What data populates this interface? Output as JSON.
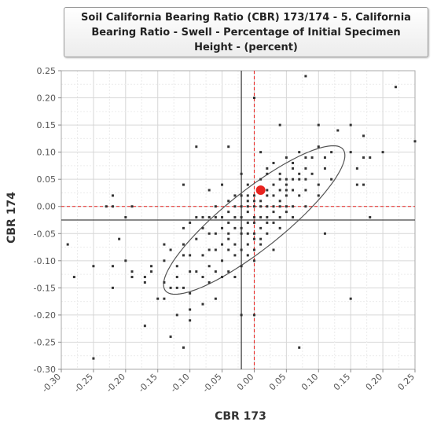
{
  "chart_data": {
    "type": "scatter",
    "title": "Soil California Bearing Ratio (CBR) 173/174 - 5. California Bearing Ratio - Swell - Percentage of Initial Specimen Height - (percent)",
    "xlabel": "CBR 173",
    "ylabel": "CBR 174",
    "xlim": [
      -0.3,
      0.25
    ],
    "ylim": [
      -0.3,
      0.25
    ],
    "xticks": [
      "-0.30",
      "-0.25",
      "-0.20",
      "-0.15",
      "-0.10",
      "-0.05",
      "0.00",
      "0.05",
      "0.10",
      "0.15",
      "0.20",
      "0.25"
    ],
    "yticks": [
      "0.25",
      "0.20",
      "0.15",
      "0.10",
      "0.05",
      "0.00",
      "-0.05",
      "-0.10",
      "-0.15",
      "-0.20",
      "-0.25",
      "-0.30"
    ],
    "grid": true,
    "colors": {
      "points": "#333333",
      "highlight": "#e8231f",
      "refline": "#e8231f",
      "meanline": "#444444",
      "ellipse": "#555555",
      "grid": "#dddddd"
    },
    "mean": {
      "x": -0.02,
      "y": -0.025
    },
    "highlight_point": {
      "x": 0.01,
      "y": 0.03
    },
    "ellipse": {
      "center": [
        0.0,
        -0.025
      ],
      "semi_major": 0.19,
      "semi_minor": 0.05,
      "angle_deg": 44
    },
    "points": [
      [
        -0.29,
        -0.07
      ],
      [
        -0.28,
        -0.13
      ],
      [
        -0.25,
        -0.28
      ],
      [
        -0.25,
        -0.11
      ],
      [
        -0.23,
        0.0
      ],
      [
        -0.22,
        0.0
      ],
      [
        -0.22,
        0.02
      ],
      [
        -0.22,
        -0.11
      ],
      [
        -0.22,
        -0.15
      ],
      [
        -0.21,
        -0.06
      ],
      [
        -0.2,
        -0.02
      ],
      [
        -0.2,
        -0.1
      ],
      [
        -0.19,
        0.0
      ],
      [
        -0.19,
        -0.12
      ],
      [
        -0.19,
        -0.13
      ],
      [
        -0.17,
        -0.22
      ],
      [
        -0.17,
        -0.13
      ],
      [
        -0.17,
        -0.14
      ],
      [
        -0.16,
        -0.11
      ],
      [
        -0.16,
        -0.12
      ],
      [
        -0.15,
        -0.17
      ],
      [
        -0.14,
        -0.07
      ],
      [
        -0.14,
        -0.1
      ],
      [
        -0.14,
        -0.14
      ],
      [
        -0.14,
        -0.17
      ],
      [
        -0.13,
        -0.24
      ],
      [
        -0.13,
        -0.08
      ],
      [
        -0.13,
        -0.15
      ],
      [
        -0.12,
        -0.11
      ],
      [
        -0.12,
        -0.13
      ],
      [
        -0.12,
        -0.15
      ],
      [
        -0.12,
        -0.2
      ],
      [
        -0.11,
        -0.26
      ],
      [
        -0.11,
        -0.07
      ],
      [
        -0.11,
        -0.09
      ],
      [
        -0.11,
        -0.15
      ],
      [
        -0.11,
        0.04
      ],
      [
        -0.11,
        -0.04
      ],
      [
        -0.1,
        -0.03
      ],
      [
        -0.1,
        -0.09
      ],
      [
        -0.1,
        -0.12
      ],
      [
        -0.1,
        -0.16
      ],
      [
        -0.1,
        -0.19
      ],
      [
        -0.1,
        -0.21
      ],
      [
        -0.09,
        -0.12
      ],
      [
        -0.09,
        -0.06
      ],
      [
        -0.09,
        -0.02
      ],
      [
        -0.09,
        0.11
      ],
      [
        -0.08,
        -0.09
      ],
      [
        -0.08,
        -0.13
      ],
      [
        -0.08,
        -0.18
      ],
      [
        -0.08,
        -0.04
      ],
      [
        -0.08,
        -0.02
      ],
      [
        -0.07,
        -0.05
      ],
      [
        -0.07,
        -0.08
      ],
      [
        -0.07,
        -0.11
      ],
      [
        -0.07,
        -0.14
      ],
      [
        -0.07,
        -0.02
      ],
      [
        -0.07,
        0.03
      ],
      [
        -0.06,
        0.0
      ],
      [
        -0.06,
        -0.02
      ],
      [
        -0.06,
        -0.05
      ],
      [
        -0.06,
        -0.08
      ],
      [
        -0.06,
        -0.12
      ],
      [
        -0.06,
        -0.17
      ],
      [
        -0.05,
        -0.02
      ],
      [
        -0.05,
        -0.04
      ],
      [
        -0.05,
        -0.07
      ],
      [
        -0.05,
        -0.1
      ],
      [
        -0.05,
        -0.13
      ],
      [
        -0.05,
        0.04
      ],
      [
        -0.04,
        -0.01
      ],
      [
        -0.04,
        -0.03
      ],
      [
        -0.04,
        -0.05
      ],
      [
        -0.04,
        -0.06
      ],
      [
        -0.04,
        -0.08
      ],
      [
        -0.04,
        -0.12
      ],
      [
        -0.04,
        0.01
      ],
      [
        -0.04,
        0.11
      ],
      [
        -0.03,
        0.0
      ],
      [
        -0.03,
        -0.02
      ],
      [
        -0.03,
        -0.04
      ],
      [
        -0.03,
        -0.07
      ],
      [
        -0.03,
        -0.09
      ],
      [
        -0.03,
        -0.13
      ],
      [
        -0.03,
        0.02
      ],
      [
        -0.02,
        0.0
      ],
      [
        -0.02,
        -0.02
      ],
      [
        -0.02,
        -0.04
      ],
      [
        -0.02,
        -0.05
      ],
      [
        -0.02,
        -0.08
      ],
      [
        -0.02,
        -0.11
      ],
      [
        -0.02,
        -0.2
      ],
      [
        -0.02,
        0.02
      ],
      [
        -0.02,
        0.06
      ],
      [
        -0.01,
        0.0
      ],
      [
        -0.01,
        -0.01
      ],
      [
        -0.01,
        -0.03
      ],
      [
        -0.01,
        -0.05
      ],
      [
        -0.01,
        -0.07
      ],
      [
        -0.01,
        -0.09
      ],
      [
        -0.01,
        0.01
      ],
      [
        -0.01,
        0.02
      ],
      [
        -0.01,
        0.04
      ],
      [
        0.0,
        0.0
      ],
      [
        0.0,
        -0.02
      ],
      [
        0.0,
        -0.03
      ],
      [
        0.0,
        -0.05
      ],
      [
        0.0,
        -0.06
      ],
      [
        0.0,
        -0.08
      ],
      [
        0.0,
        -0.1
      ],
      [
        0.0,
        -0.2
      ],
      [
        0.0,
        0.01
      ],
      [
        0.0,
        0.02
      ],
      [
        0.0,
        0.2
      ],
      [
        0.01,
        0.0
      ],
      [
        0.01,
        -0.02
      ],
      [
        0.01,
        -0.04
      ],
      [
        0.01,
        -0.06
      ],
      [
        0.01,
        -0.07
      ],
      [
        0.01,
        0.01
      ],
      [
        0.01,
        0.05
      ],
      [
        0.01,
        0.1
      ],
      [
        0.02,
        0.0
      ],
      [
        0.02,
        -0.02
      ],
      [
        0.02,
        -0.03
      ],
      [
        0.02,
        -0.05
      ],
      [
        0.02,
        0.02
      ],
      [
        0.02,
        0.03
      ],
      [
        0.02,
        0.06
      ],
      [
        0.02,
        0.07
      ],
      [
        0.03,
        0.0
      ],
      [
        0.03,
        -0.01
      ],
      [
        0.03,
        -0.03
      ],
      [
        0.03,
        -0.08
      ],
      [
        0.03,
        0.02
      ],
      [
        0.03,
        0.04
      ],
      [
        0.03,
        0.08
      ],
      [
        0.04,
        0.0
      ],
      [
        0.04,
        -0.02
      ],
      [
        0.04,
        -0.04
      ],
      [
        0.04,
        0.01
      ],
      [
        0.04,
        0.03
      ],
      [
        0.04,
        0.05
      ],
      [
        0.04,
        0.06
      ],
      [
        0.04,
        0.15
      ],
      [
        0.05,
        0.0
      ],
      [
        0.05,
        -0.01
      ],
      [
        0.05,
        0.02
      ],
      [
        0.05,
        0.03
      ],
      [
        0.05,
        0.04
      ],
      [
        0.05,
        0.05
      ],
      [
        0.05,
        0.09
      ],
      [
        0.06,
        0.0
      ],
      [
        0.06,
        -0.02
      ],
      [
        0.06,
        0.03
      ],
      [
        0.06,
        0.05
      ],
      [
        0.06,
        0.07
      ],
      [
        0.06,
        0.08
      ],
      [
        0.07,
        0.02
      ],
      [
        0.07,
        0.05
      ],
      [
        0.07,
        0.06
      ],
      [
        0.07,
        0.1
      ],
      [
        0.07,
        -0.26
      ],
      [
        0.08,
        0.0
      ],
      [
        0.08,
        0.03
      ],
      [
        0.08,
        0.05
      ],
      [
        0.08,
        0.07
      ],
      [
        0.08,
        0.09
      ],
      [
        0.08,
        0.24
      ],
      [
        0.09,
        0.06
      ],
      [
        0.09,
        0.09
      ],
      [
        0.1,
        0.15
      ],
      [
        0.1,
        0.02
      ],
      [
        0.1,
        0.04
      ],
      [
        0.1,
        0.11
      ],
      [
        0.11,
        -0.05
      ],
      [
        0.11,
        0.07
      ],
      [
        0.11,
        0.09
      ],
      [
        0.12,
        0.05
      ],
      [
        0.12,
        0.1
      ],
      [
        0.13,
        0.14
      ],
      [
        0.15,
        0.15
      ],
      [
        0.15,
        -0.17
      ],
      [
        0.15,
        0.1
      ],
      [
        0.16,
        0.04
      ],
      [
        0.16,
        0.07
      ],
      [
        0.17,
        0.04
      ],
      [
        0.17,
        0.09
      ],
      [
        0.17,
        0.13
      ],
      [
        0.18,
        0.09
      ],
      [
        0.18,
        -0.02
      ],
      [
        0.2,
        0.1
      ],
      [
        0.22,
        0.22
      ],
      [
        0.25,
        0.12
      ]
    ]
  }
}
